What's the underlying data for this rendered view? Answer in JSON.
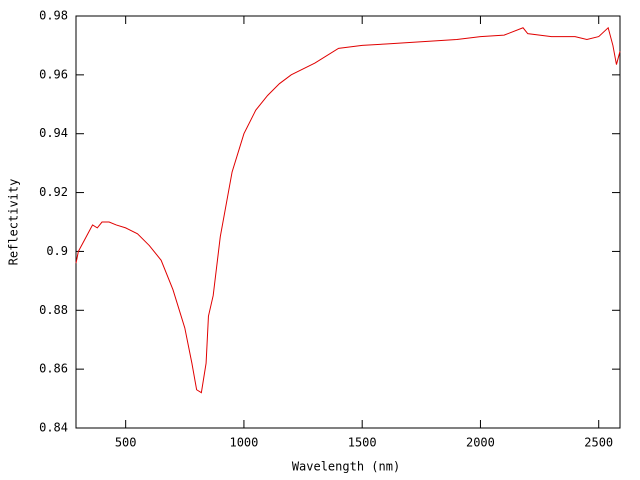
{
  "chart_data": {
    "type": "line",
    "xlabel": "Wavelength (nm)",
    "ylabel": "Reflectivity",
    "x": [
      290,
      300,
      320,
      340,
      360,
      380,
      400,
      430,
      460,
      500,
      550,
      600,
      650,
      700,
      750,
      780,
      800,
      820,
      840,
      850,
      870,
      900,
      950,
      1000,
      1050,
      1100,
      1150,
      1200,
      1300,
      1400,
      1500,
      1600,
      1700,
      1800,
      1900,
      2000,
      2100,
      2180,
      2200,
      2300,
      2400,
      2450,
      2500,
      2540,
      2560,
      2575,
      2590
    ],
    "series": [
      {
        "color": "#e00000",
        "values": [
          0.896,
          0.9,
          0.903,
          0.906,
          0.909,
          0.908,
          0.91,
          0.91,
          0.909,
          0.908,
          0.906,
          0.902,
          0.897,
          0.887,
          0.874,
          0.862,
          0.853,
          0.852,
          0.862,
          0.878,
          0.885,
          0.905,
          0.927,
          0.94,
          0.948,
          0.953,
          0.957,
          0.96,
          0.964,
          0.969,
          0.97,
          0.9705,
          0.971,
          0.9715,
          0.972,
          0.973,
          0.9735,
          0.976,
          0.974,
          0.973,
          0.973,
          0.972,
          0.973,
          0.976,
          0.97,
          0.9635,
          0.968
        ]
      }
    ],
    "xlim": [
      290,
      2590
    ],
    "ylim": [
      0.84,
      0.98
    ],
    "xticks": [
      500,
      1000,
      1500,
      2000,
      2500
    ],
    "yticks": [
      0.84,
      0.86,
      0.88,
      0.9,
      0.92,
      0.94,
      0.96,
      0.98
    ]
  }
}
